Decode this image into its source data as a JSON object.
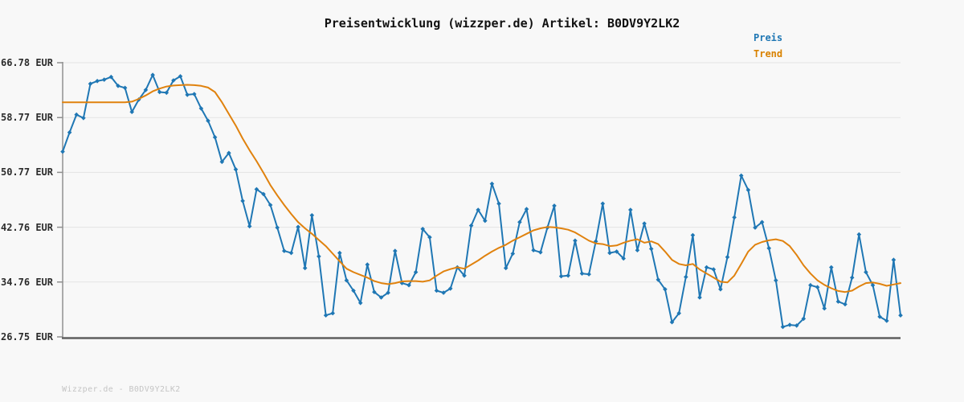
{
  "title": "Preisentwicklung (wizzper.de) Artikel: B0DV9Y2LK2",
  "legend": {
    "price": "Preis",
    "trend": "Trend"
  },
  "footer": "Wizzper.de - B0DV9Y2LK2",
  "colors": {
    "background": "#f8f8f8",
    "price": "#1f77b4",
    "trend": "#e0820e",
    "legend_price": "#1f77b4",
    "legend_trend": "#d98200",
    "grid": "#e4e4e4",
    "spine_bottom": "#5f5f5f",
    "spine_left": "#8f8f8f",
    "tick_text": "#2b2b2b",
    "title_text": "#111111",
    "footer_text": "#c5c5c5"
  },
  "chart_data": {
    "type": "line",
    "title": "Preisentwicklung (wizzper.de) Artikel: B0DV9Y2LK2",
    "xlabel": "",
    "ylabel": "EUR",
    "ylim": [
      26.75,
      66.78
    ],
    "grid": "horizontal",
    "legend_position": "top-right-outside",
    "y_ticks": [
      {
        "label": "66.78 EUR",
        "value": 66.78
      },
      {
        "label": "58.77 EUR",
        "value": 58.77
      },
      {
        "label": "50.77 EUR",
        "value": 50.77
      },
      {
        "label": "42.76 EUR",
        "value": 42.76
      },
      {
        "label": "34.76 EUR",
        "value": 34.76
      },
      {
        "label": "26.75 EUR",
        "value": 26.75
      }
    ],
    "series": [
      {
        "name": "Preis",
        "color": "#1f77b4",
        "marker": "diamond",
        "line_width": 2,
        "values": [
          53.8,
          56.6,
          59.2,
          58.7,
          63.7,
          64.1,
          64.3,
          64.7,
          63.4,
          63.1,
          59.6,
          61.4,
          62.8,
          65.0,
          62.5,
          62.4,
          64.2,
          64.8,
          62.1,
          62.2,
          60.1,
          58.3,
          55.9,
          52.3,
          53.6,
          51.2,
          46.6,
          42.9,
          48.3,
          47.6,
          46.0,
          42.7,
          39.3,
          39.0,
          42.8,
          36.8,
          44.5,
          38.5,
          29.9,
          30.2,
          39.0,
          35.0,
          33.5,
          31.7,
          37.3,
          33.3,
          32.5,
          33.2,
          39.3,
          34.6,
          34.3,
          36.2,
          42.5,
          41.3,
          33.5,
          33.2,
          33.8,
          36.9,
          35.7,
          43.0,
          45.3,
          43.7,
          49.1,
          46.2,
          36.8,
          38.9,
          43.5,
          45.4,
          39.4,
          39.1,
          42.7,
          45.9,
          35.6,
          35.7,
          40.8,
          36.0,
          35.9,
          40.7,
          46.2,
          39.0,
          39.2,
          38.2,
          45.3,
          39.4,
          43.3,
          39.6,
          35.1,
          33.7,
          28.9,
          30.2,
          35.5,
          41.6,
          32.5,
          36.9,
          36.6,
          33.7,
          38.4,
          44.2,
          50.3,
          48.2,
          42.7,
          43.5,
          39.7,
          35.0,
          28.2,
          28.5,
          28.4,
          29.4,
          34.3,
          34.0,
          30.9,
          36.9,
          31.9,
          31.5,
          35.4,
          41.7,
          36.2,
          34.3,
          29.7,
          29.1,
          38.0,
          29.9
        ]
      },
      {
        "name": "Trend",
        "color": "#e0820e",
        "marker": "none",
        "line_width": 2,
        "values": [
          61.0,
          61.0,
          61.0,
          61.0,
          61.0,
          61.0,
          61.0,
          61.0,
          61.0,
          61.0,
          61.1,
          61.5,
          62.0,
          62.6,
          63.0,
          63.3,
          63.45,
          63.5,
          63.55,
          63.5,
          63.4,
          63.15,
          62.5,
          61.0,
          59.3,
          57.6,
          55.7,
          54.0,
          52.4,
          50.7,
          48.9,
          47.4,
          46.0,
          44.7,
          43.5,
          42.6,
          41.8,
          40.9,
          40.0,
          38.9,
          37.8,
          36.7,
          36.2,
          35.8,
          35.4,
          34.9,
          34.6,
          34.45,
          34.6,
          34.85,
          34.9,
          34.9,
          34.8,
          35.0,
          35.7,
          36.3,
          36.65,
          36.9,
          36.7,
          37.3,
          37.9,
          38.6,
          39.2,
          39.75,
          40.2,
          40.8,
          41.3,
          41.8,
          42.3,
          42.6,
          42.8,
          42.75,
          42.6,
          42.4,
          42.0,
          41.4,
          40.8,
          40.4,
          40.3,
          40.0,
          40.1,
          40.5,
          40.8,
          41.0,
          40.5,
          40.7,
          40.3,
          39.2,
          38.0,
          37.4,
          37.2,
          37.4,
          36.6,
          36.0,
          35.4,
          34.8,
          34.7,
          35.7,
          37.4,
          39.2,
          40.2,
          40.6,
          40.85,
          41.0,
          40.75,
          40.0,
          38.7,
          37.2,
          36.0,
          35.0,
          34.35,
          33.85,
          33.45,
          33.3,
          33.5,
          34.1,
          34.6,
          34.7,
          34.5,
          34.2,
          34.4,
          34.6
        ]
      }
    ]
  }
}
